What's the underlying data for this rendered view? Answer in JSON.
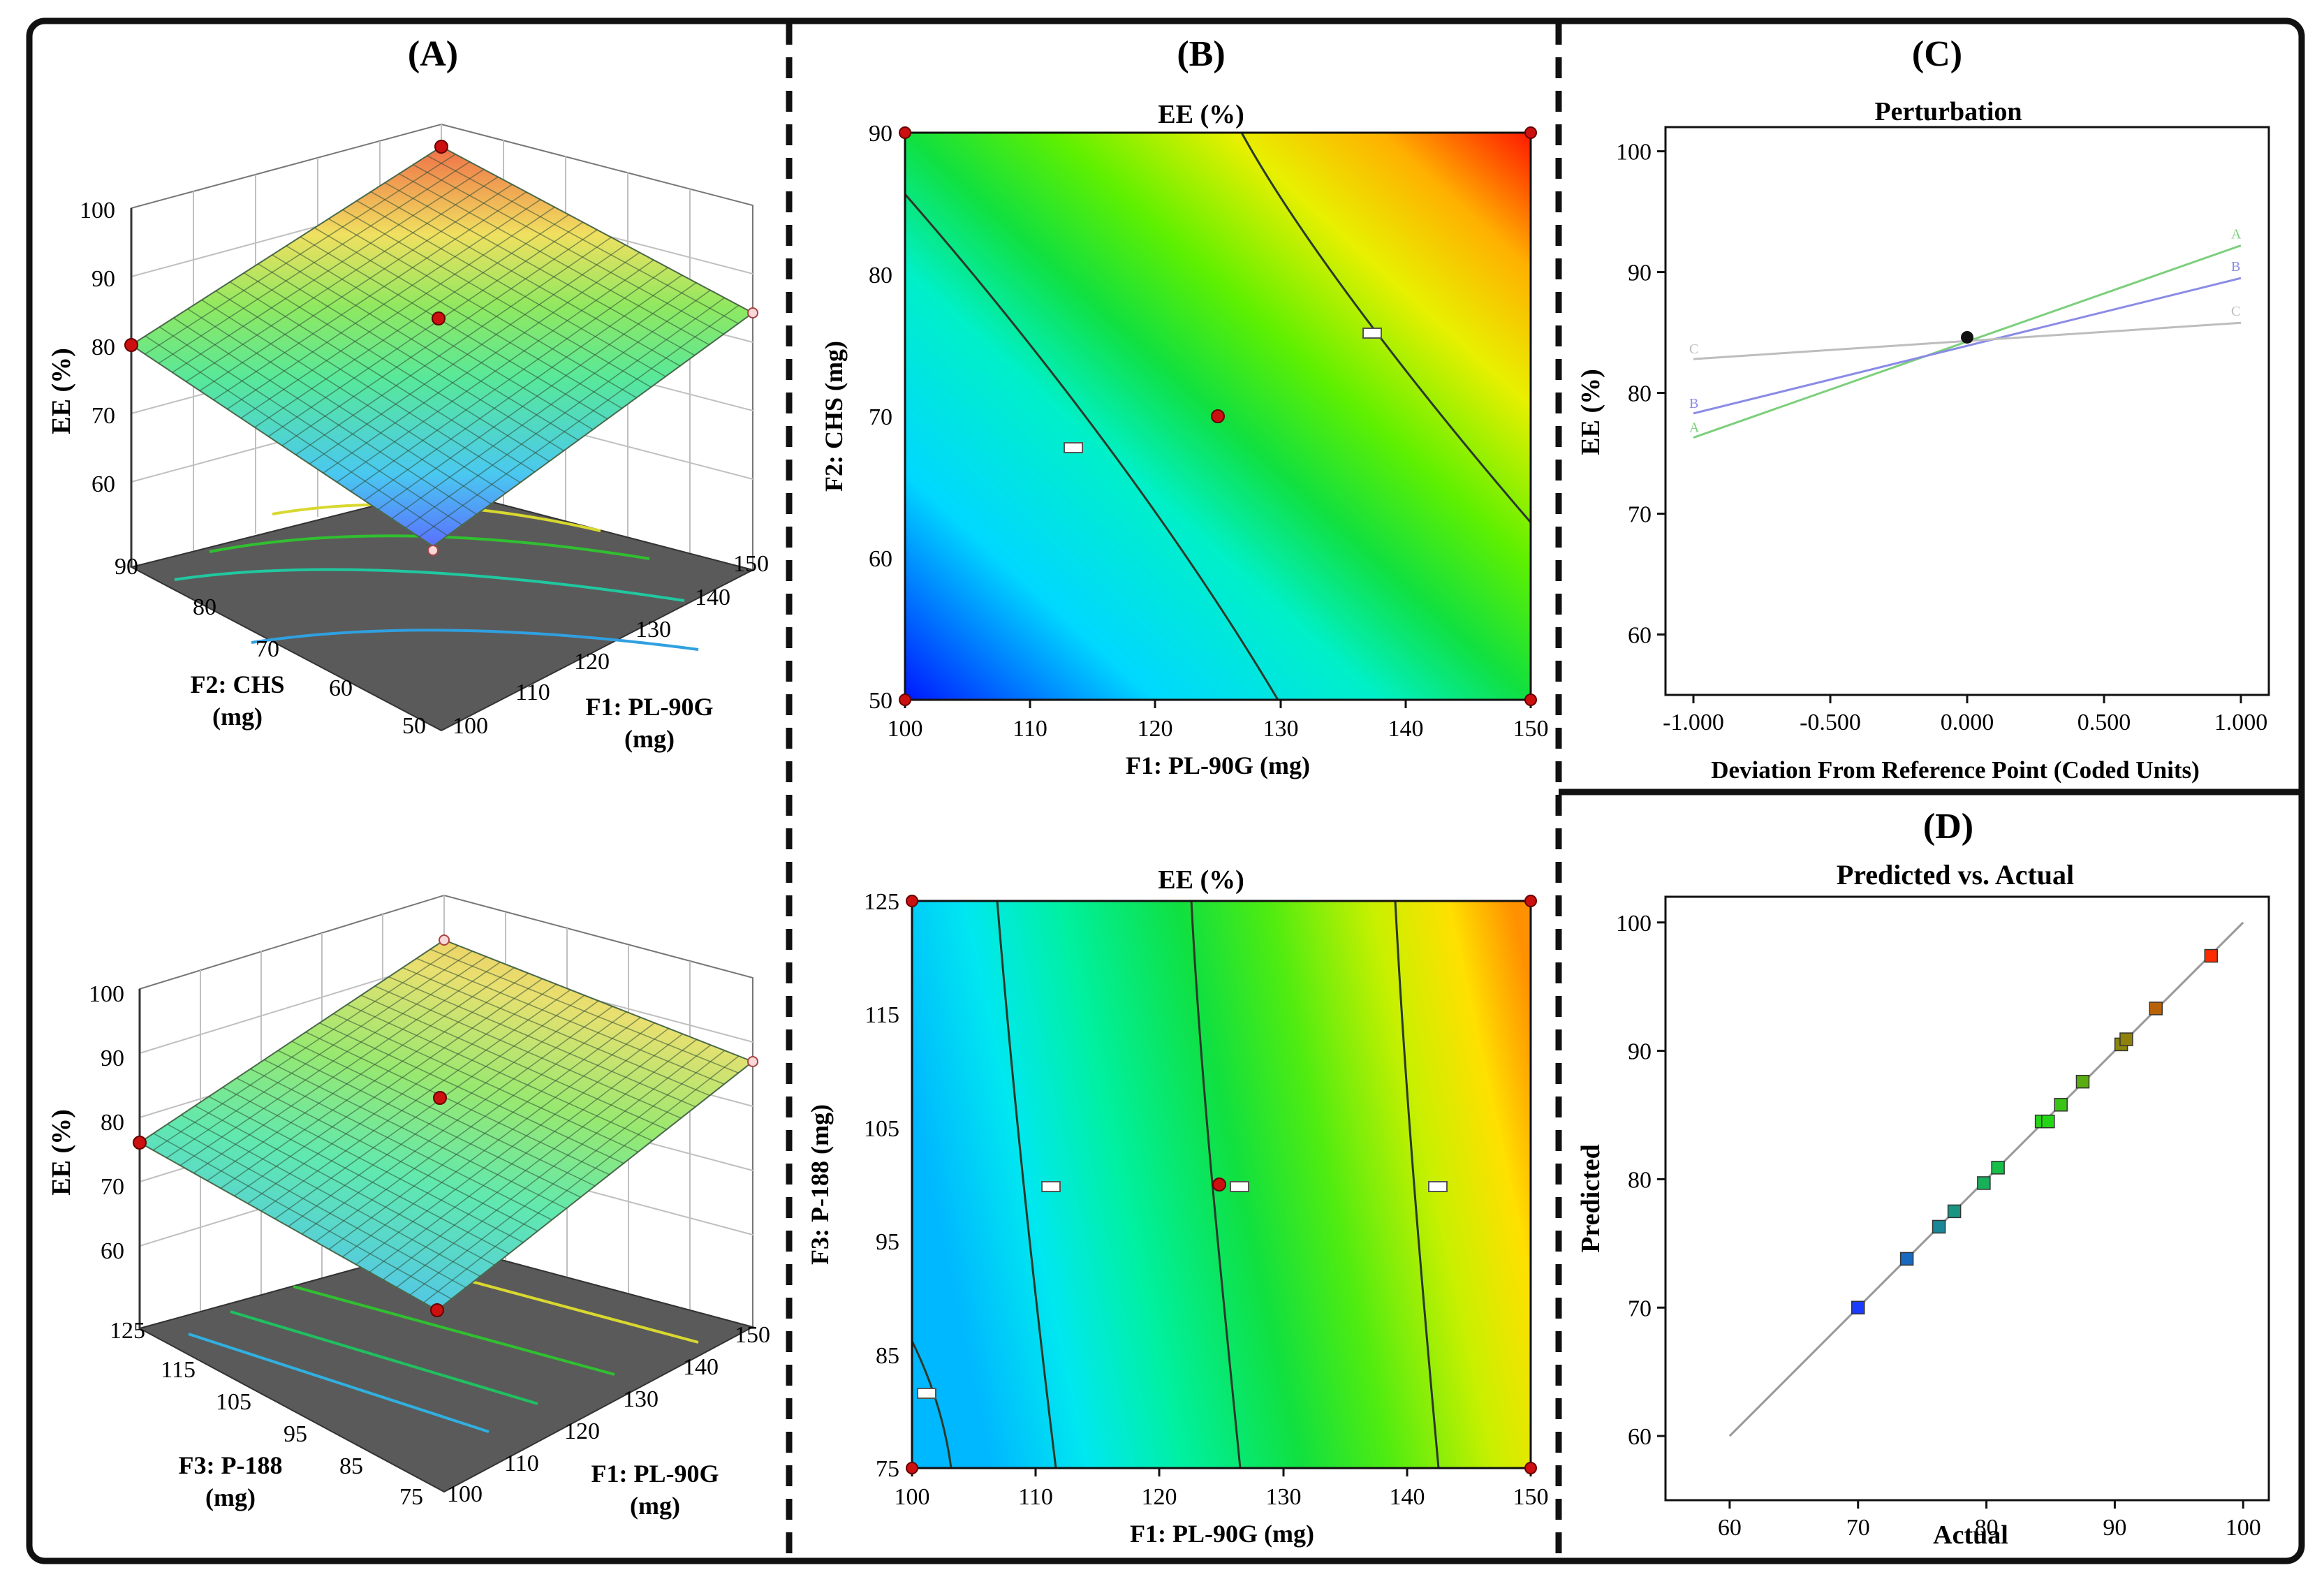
{
  "panels": {
    "A": {
      "label": "(A)",
      "top": {
        "zlabel": "EE (%)",
        "ztick_labels": [
          "60",
          "70",
          "80",
          "90",
          "100"
        ],
        "f2_tick_labels": [
          "50",
          "60",
          "70",
          "80",
          "90"
        ],
        "f1_tick_labels": [
          "100",
          "110",
          "120",
          "130",
          "140",
          "150"
        ],
        "f2_axis": [
          "F2: CHS",
          "(mg)"
        ],
        "f1_axis": [
          "F1: PL-90G",
          "(mg)"
        ]
      },
      "bottom": {
        "zlabel": "EE (%)",
        "ztick_labels": [
          "60",
          "70",
          "80",
          "90",
          "100"
        ],
        "f3_tick_labels": [
          "75",
          "85",
          "95",
          "105",
          "115",
          "125"
        ],
        "f1_tick_labels": [
          "100",
          "110",
          "120",
          "130",
          "140",
          "150"
        ],
        "f3_axis": [
          "F3: P-188",
          "(mg)"
        ],
        "f1_axis": [
          "F1: PL-90G",
          "(mg)"
        ]
      }
    },
    "B": {
      "label": "(B)",
      "top": {
        "title": "EE (%)",
        "xlabel": "F1: PL-90G (mg)",
        "ylabel": "F2: CHS (mg)",
        "x_ticks": [
          "100",
          "110",
          "120",
          "130",
          "140",
          "150"
        ],
        "y_ticks": [
          "50",
          "60",
          "70",
          "80",
          "90"
        ]
      },
      "bottom": {
        "title": "EE (%)",
        "xlabel": "F1: PL-90G (mg)",
        "ylabel": "F3: P-188 (mg)",
        "x_ticks": [
          "100",
          "110",
          "120",
          "130",
          "140",
          "150"
        ],
        "y_ticks": [
          "75",
          "85",
          "95",
          "105",
          "115",
          "125"
        ]
      }
    },
    "C": {
      "label": "(C)",
      "title": "Perturbation",
      "xlabel": "Deviation From Reference Point (Coded Units)",
      "ylabel": "EE (%)",
      "x_ticks": [
        "-1.000",
        "-0.500",
        "0.000",
        "0.500",
        "1.000"
      ],
      "y_ticks": [
        "60",
        "70",
        "80",
        "90",
        "100"
      ]
    },
    "D": {
      "label": "(D)",
      "title": "Predicted vs. Actual",
      "xlabel": "Actual",
      "ylabel": "Predicted",
      "x_ticks": [
        "60",
        "70",
        "80",
        "90",
        "100"
      ],
      "y_ticks": [
        "60",
        "70",
        "80",
        "90",
        "100"
      ]
    }
  },
  "colors": {
    "frame": "#111111",
    "surface_low": "#1a3cff",
    "surface_mid": "#18e018",
    "surface_high": "#ff2a00",
    "perturb_A": "#7ccf7c",
    "perturb_B": "#8a8ae6",
    "perturb_C": "#bdbdbd"
  },
  "chart_data": [
    {
      "panel": "A-top",
      "type": "surface",
      "x_name": "F1: PL-90G (mg)",
      "x_range": [
        100,
        150
      ],
      "y_name": "F2: CHS (mg)",
      "y_range": [
        50,
        90
      ],
      "z_name": "EE (%)",
      "z_range": [
        60,
        100
      ],
      "corners": [
        {
          "f1": 100,
          "f2": 50,
          "ee": 68
        },
        {
          "f1": 150,
          "f2": 50,
          "ee": 84
        },
        {
          "f1": 100,
          "f2": 90,
          "ee": 80
        },
        {
          "f1": 150,
          "f2": 90,
          "ee": 97
        }
      ],
      "center": {
        "f1": 125,
        "f2": 70,
        "ee": 84.5
      }
    },
    {
      "panel": "A-bottom",
      "type": "surface",
      "x_name": "F1: PL-90G (mg)",
      "x_range": [
        100,
        150
      ],
      "y_name": "F3: P-188 (mg)",
      "y_range": [
        75,
        125
      ],
      "z_name": "EE (%)",
      "z_range": [
        60,
        100
      ],
      "corners": [
        {
          "f1": 100,
          "f3": 75,
          "ee": 71
        },
        {
          "f1": 150,
          "f3": 75,
          "ee": 92
        },
        {
          "f1": 100,
          "f3": 125,
          "ee": 76
        },
        {
          "f1": 150,
          "f3": 125,
          "ee": 97
        }
      ],
      "center": {
        "f1": 125,
        "f3": 100,
        "ee": 84.5
      }
    },
    {
      "panel": "B-top",
      "type": "heatmap",
      "title": "EE (%)",
      "xlabel": "F1: PL-90G (mg)",
      "xlim": [
        100,
        150
      ],
      "ylabel": "F2: CHS (mg)",
      "ylim": [
        50,
        90
      ],
      "contour_levels": [
        75,
        85,
        95
      ],
      "corner_points": [
        [
          100,
          50
        ],
        [
          150,
          50
        ],
        [
          100,
          90
        ],
        [
          150,
          90
        ]
      ],
      "center_point": [
        125,
        70
      ]
    },
    {
      "panel": "B-bottom",
      "type": "heatmap",
      "title": "EE (%)",
      "xlabel": "F1: PL-90G (mg)",
      "xlim": [
        100,
        150
      ],
      "ylabel": "F3: P-188 (mg)",
      "ylim": [
        75,
        125
      ],
      "contour_levels": [
        75,
        80,
        85,
        90
      ],
      "corner_points": [
        [
          100,
          75
        ],
        [
          150,
          75
        ],
        [
          100,
          125
        ],
        [
          150,
          125
        ]
      ],
      "center_point": [
        125,
        100
      ]
    },
    {
      "panel": "C",
      "type": "line",
      "title": "Perturbation",
      "xlabel": "Deviation From Reference Point (Coded Units)",
      "ylabel": "EE (%)",
      "xlim": [
        -1.0,
        1.0
      ],
      "ylim": [
        55,
        102
      ],
      "series": [
        {
          "name": "A",
          "x": [
            -1.0,
            1.0
          ],
          "y": [
            76.3,
            92.2
          ]
        },
        {
          "name": "B",
          "x": [
            -1.0,
            1.0
          ],
          "y": [
            78.3,
            89.5
          ]
        },
        {
          "name": "C",
          "x": [
            -1.0,
            1.0
          ],
          "y": [
            82.8,
            85.8
          ]
        }
      ],
      "reference_point": {
        "x": 0.0,
        "y": 84.6
      }
    },
    {
      "panel": "D",
      "type": "scatter",
      "title": "Predicted vs. Actual",
      "xlabel": "Actual",
      "ylabel": "Predicted",
      "xlim": [
        55,
        102
      ],
      "ylim": [
        55,
        102
      ],
      "reference_line": [
        [
          60,
          60
        ],
        [
          100,
          100
        ]
      ],
      "x": [
        70,
        73.8,
        76.3,
        77.5,
        79.8,
        80.9,
        84.3,
        84.8,
        85.8,
        87.5,
        90.5,
        90.9,
        93.2,
        97.5
      ],
      "y": [
        70,
        73.8,
        76.3,
        77.5,
        79.7,
        80.9,
        84.5,
        84.5,
        85.8,
        87.6,
        90.5,
        90.9,
        93.3,
        97.4
      ]
    }
  ]
}
